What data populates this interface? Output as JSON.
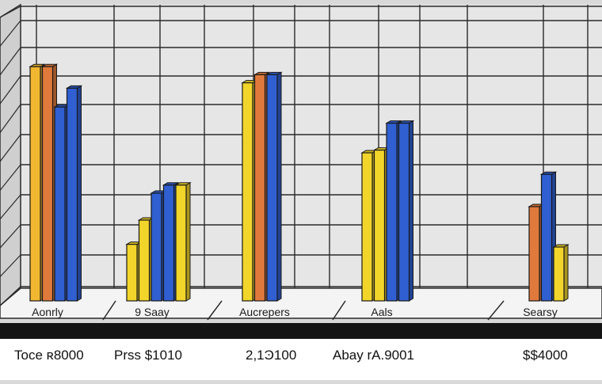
{
  "chart_data": {
    "type": "bar",
    "style": "3d-perspective",
    "grid": true,
    "legend": "none",
    "title": "",
    "xlabel": "",
    "ylabel": "",
    "ylim": [
      0,
      100
    ],
    "groups": [
      {
        "label": "Aonrly",
        "bars": [
          {
            "value": 87,
            "color": "#f2b730"
          },
          {
            "value": 87,
            "color": "#e07a3c"
          },
          {
            "value": 72,
            "color": "#2f5fd0"
          },
          {
            "value": 79,
            "color": "#2f5fd0"
          }
        ]
      },
      {
        "label": "9 Saay",
        "bars": [
          {
            "value": 21,
            "color": "#f2d52a"
          },
          {
            "value": 30,
            "color": "#f2d52a"
          },
          {
            "value": 40,
            "color": "#2f5fd0"
          },
          {
            "value": 43,
            "color": "#2f5fd0"
          },
          {
            "value": 43,
            "color": "#f2d52a"
          }
        ]
      },
      {
        "label": "Aucrepers",
        "bars": [
          {
            "value": 81,
            "color": "#f2d52a"
          },
          {
            "value": 84,
            "color": "#e07a3c"
          },
          {
            "value": 84,
            "color": "#2f5fd0"
          }
        ]
      },
      {
        "label": "Aals",
        "bars": [
          {
            "value": 55,
            "color": "#f2d52a"
          },
          {
            "value": 56,
            "color": "#f2d52a"
          },
          {
            "value": 66,
            "color": "#2f5fd0"
          },
          {
            "value": 66,
            "color": "#2f5fd0"
          }
        ]
      },
      {
        "label": "Searsy",
        "bars": [
          {
            "value": 35,
            "color": "#e07a3c"
          },
          {
            "value": 47,
            "color": "#2f5fd0"
          },
          {
            "value": 20,
            "color": "#f2d52a"
          }
        ]
      }
    ],
    "footer_labels": [
      "Toce ʀ8000",
      "Prss $1010",
      "2,1Ͽ100",
      "Abay rA.9001",
      "$$4000"
    ]
  },
  "colors": {
    "background": "#d9d9d9",
    "grid_line": "#2a2a2a",
    "wall": "#e6e6e6",
    "floor": "#f4f4f4",
    "baseline_bar": "#141414",
    "footer": "#ffffff"
  }
}
